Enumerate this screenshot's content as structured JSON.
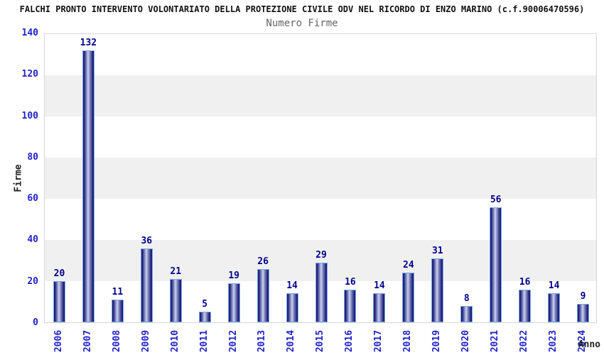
{
  "chart_data": {
    "type": "bar",
    "title": "FALCHI PRONTO INTERVENTO VOLONTARIATO DELLA PROTEZIONE CIVILE ODV NEL RICORDO DI ENZO MARINO (c.f.90006470596)",
    "subtitle": "Numero Firme",
    "xlabel": "Anno",
    "ylabel": "Firme",
    "categories": [
      "2006",
      "2007",
      "2008",
      "2009",
      "2010",
      "2011",
      "2012",
      "2013",
      "2014",
      "2015",
      "2016",
      "2017",
      "2018",
      "2019",
      "2020",
      "2021",
      "2022",
      "2023",
      "2024"
    ],
    "values": [
      20,
      132,
      11,
      36,
      21,
      5,
      19,
      26,
      14,
      29,
      16,
      14,
      24,
      31,
      8,
      56,
      16,
      14,
      9
    ],
    "ylim": [
      0,
      140
    ],
    "yticks": [
      0,
      20,
      40,
      60,
      80,
      100,
      120,
      140
    ],
    "grid": "alternating horizontal bands every 20 units",
    "legend": "none",
    "bar_value_labels": true
  },
  "colors": {
    "bar_dark": "#1e1e78",
    "bar_mid": "#8d95c8",
    "bar_light": "#cdd3ee",
    "bar_border": "#7aa7e6",
    "value_label": "#00008b",
    "tick_label": "#2222cc",
    "band": "#f0f0f0",
    "band_alt": "#ffffff",
    "plot_border": "#d6d6d6",
    "title_color": "#111111",
    "subtitle_color": "#666666",
    "axis_label_color": "#222222",
    "background": "#ffffff"
  }
}
